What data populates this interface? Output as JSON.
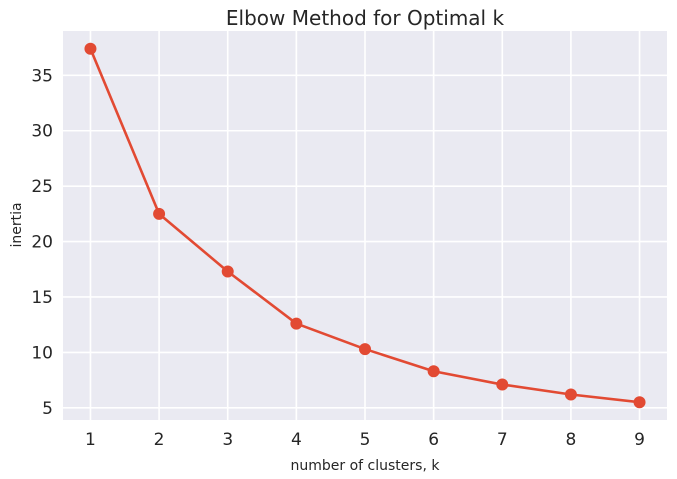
{
  "chart_data": {
    "type": "line",
    "title": "Elbow Method for Optimal k",
    "xlabel": "number of clusters, k",
    "ylabel": "inertia",
    "x": [
      1,
      2,
      3,
      4,
      5,
      6,
      7,
      8,
      9
    ],
    "series": [
      {
        "values": [
          37.4,
          22.5,
          17.3,
          12.6,
          10.3,
          8.3,
          7.1,
          6.2,
          5.5
        ],
        "color": "#E24A33"
      }
    ],
    "xticks": [
      "1",
      "2",
      "3",
      "4",
      "5",
      "6",
      "7",
      "8",
      "9"
    ],
    "yticks": [
      "5",
      "10",
      "15",
      "20",
      "25",
      "30",
      "35"
    ],
    "xlim": [
      0.6,
      9.4
    ],
    "ylim": [
      3.9,
      39.0
    ],
    "grid": true,
    "background": "#EAEAF2"
  }
}
